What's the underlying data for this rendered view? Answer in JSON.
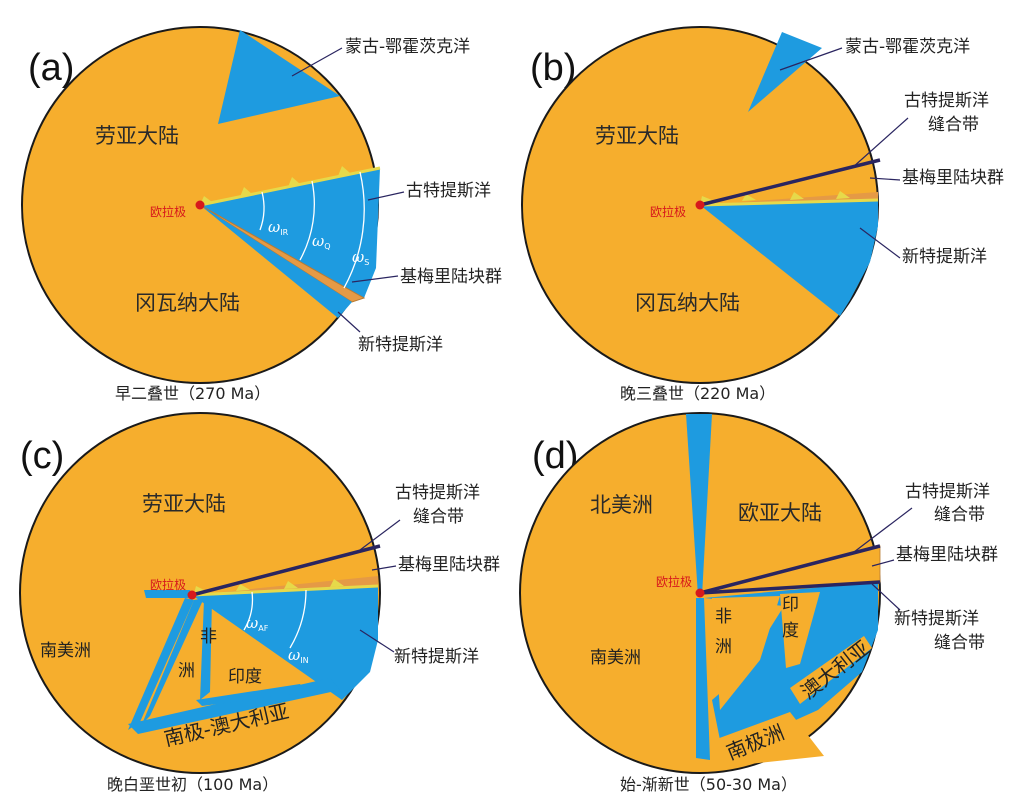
{
  "colors": {
    "continent": "#F6AE2D",
    "ocean": "#1E9BE0",
    "outline": "#1a1a1a",
    "suture": "#2A2560",
    "cimmeria": "#E6D94A",
    "pole": "#D7191C",
    "leader": "#2A2560"
  },
  "panels": [
    {
      "tag": "(a)",
      "caption": "早二叠世（270 Ma）",
      "pole_label": "欧拉极",
      "continent_labels": [
        "劳亚大陆",
        "冈瓦纳大陆"
      ],
      "callouts": [
        "蒙古-鄂霍茨克洋",
        "古特提斯洋",
        "基梅里陆块群",
        "新特提斯洋"
      ],
      "omega": [
        {
          "symbol": "ω",
          "sub": "IR"
        },
        {
          "symbol": "ω",
          "sub": "Q"
        },
        {
          "symbol": "ω",
          "sub": "S"
        }
      ]
    },
    {
      "tag": "(b)",
      "caption": "晚三叠世（220 Ma）",
      "pole_label": "欧拉极",
      "continent_labels": [
        "劳亚大陆",
        "冈瓦纳大陆"
      ],
      "callouts": [
        "蒙古-鄂霍茨克洋",
        "古特提斯洋",
        "缝合带",
        "基梅里陆块群",
        "新特提斯洋"
      ]
    },
    {
      "tag": "(c)",
      "caption": "晚白垩世初（100 Ma）",
      "pole_label": "欧拉极",
      "continent_labels": [
        "劳亚大陆",
        "南美洲",
        "非",
        "洲",
        "印度",
        "南极-澳大利亚"
      ],
      "callouts": [
        "古特提斯洋",
        "缝合带",
        "基梅里陆块群",
        "新特提斯洋"
      ],
      "omega": [
        {
          "symbol": "ω",
          "sub": "AF"
        },
        {
          "symbol": "ω",
          "sub": "IN"
        }
      ]
    },
    {
      "tag": "(d)",
      "caption": "始-渐新世（50-30 Ma）",
      "pole_label": "欧拉极",
      "continent_labels": [
        "北美洲",
        "欧亚大陆",
        "南美洲",
        "非",
        "洲",
        "印",
        "度",
        "澳大利亚",
        "南极洲"
      ],
      "callouts": [
        "古特提斯洋",
        "缝合带",
        "基梅里陆块群",
        "新特提斯洋",
        "缝合带"
      ]
    }
  ]
}
